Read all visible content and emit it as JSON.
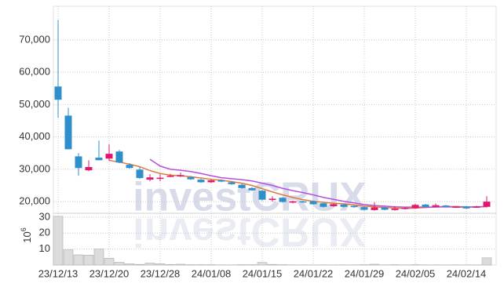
{
  "chart_data": [
    {
      "type": "candlestick",
      "watermark": "investCRUX",
      "up_color": "#e3166e",
      "down_color": "#2e8fcb",
      "open": [
        55600,
        46600,
        34000,
        29700,
        33600,
        33300,
        35500,
        31400,
        29900,
        26800,
        27300,
        27800,
        27800,
        27600,
        26800,
        26000,
        26600,
        26000,
        25200,
        24200,
        23400,
        20700,
        21200,
        19700,
        20100,
        20100,
        19500,
        18600,
        19100,
        18700,
        18300,
        17400,
        18200,
        17400,
        17800,
        18000,
        19100,
        18400,
        18800,
        18300,
        18500,
        18300,
        18400
      ],
      "high": [
        76200,
        49000,
        35000,
        32800,
        38900,
        37700,
        36000,
        31900,
        30700,
        28500,
        28500,
        28600,
        29000,
        27900,
        27100,
        26900,
        26900,
        26300,
        25500,
        24500,
        23600,
        21700,
        21400,
        20300,
        20300,
        20300,
        19700,
        19400,
        19300,
        18900,
        18500,
        19800,
        18400,
        18600,
        18300,
        19400,
        19300,
        19400,
        19000,
        18600,
        18700,
        18700,
        21700
      ],
      "low": [
        45900,
        36200,
        28000,
        29400,
        32800,
        32600,
        31900,
        30200,
        27000,
        26300,
        26300,
        27600,
        27600,
        26700,
        25800,
        25800,
        26000,
        25200,
        24000,
        23300,
        20300,
        20000,
        19700,
        19500,
        19700,
        19000,
        18200,
        18400,
        18200,
        18100,
        17300,
        17200,
        17300,
        17200,
        17600,
        17800,
        18200,
        18300,
        18200,
        18100,
        17700,
        18100,
        18200
      ],
      "close": [
        51500,
        36200,
        30400,
        30700,
        32800,
        34800,
        32100,
        30400,
        27300,
        27500,
        27400,
        28000,
        28200,
        26900,
        26000,
        26600,
        26200,
        25400,
        24200,
        23500,
        20600,
        20900,
        19900,
        20100,
        19900,
        19200,
        18400,
        19200,
        18400,
        18300,
        17500,
        18200,
        17500,
        17800,
        18100,
        19000,
        18400,
        18900,
        18400,
        18500,
        17900,
        18500,
        20000
      ],
      "moving_averages": [
        {
          "color": "#e07a3c",
          "values": [
            null,
            null,
            null,
            null,
            null,
            32800,
            32200,
            31600,
            30800,
            29600,
            28700,
            28200,
            28000,
            27700,
            27300,
            26900,
            26600,
            26200,
            25700,
            25000,
            24000,
            23000,
            22100,
            21300,
            20600,
            20100,
            19800,
            19500,
            19300,
            19000,
            18600,
            18400,
            18200,
            18000,
            17900,
            18000,
            18200,
            18400,
            18500,
            18500,
            18400,
            18300,
            18500
          ]
        },
        {
          "color": "#b84ee0",
          "values": [
            null,
            null,
            null,
            null,
            null,
            null,
            null,
            null,
            null,
            33100,
            31000,
            30000,
            29700,
            29300,
            28700,
            28000,
            27400,
            27100,
            26800,
            26400,
            25700,
            25000,
            24100,
            23400,
            22800,
            22100,
            21300,
            20700,
            20100,
            19600,
            19100,
            18800,
            18600,
            18400,
            18300,
            18300,
            18300,
            18300,
            18400,
            18300,
            18300,
            18400,
            18500
          ]
        }
      ],
      "ylim": [
        16400,
        80400
      ],
      "yticks": [
        {
          "value": 20000,
          "label": "20,000"
        },
        {
          "value": 30000,
          "label": "30,000"
        },
        {
          "value": 40000,
          "label": "40,000"
        },
        {
          "value": 50000,
          "label": "50,000"
        },
        {
          "value": 60000,
          "label": "60,000"
        },
        {
          "value": 70000,
          "label": "70,000"
        }
      ],
      "grid": true
    },
    {
      "type": "bar",
      "categories": [
        "23/12/13",
        null,
        null,
        null,
        null,
        "23/12/20",
        null,
        null,
        null,
        null,
        "23/12/28",
        null,
        null,
        null,
        null,
        "24/01/08",
        null,
        null,
        null,
        null,
        "24/01/15",
        null,
        null,
        null,
        null,
        "24/01/22",
        null,
        null,
        null,
        null,
        "24/01/29",
        null,
        null,
        null,
        null,
        "24/02/05",
        null,
        null,
        null,
        null,
        "24/02/14",
        null,
        null
      ],
      "values": [
        30.5,
        9.5,
        6.4,
        6.2,
        10,
        4.3,
        1.7,
        0.8,
        0.4,
        1.2,
        0.8,
        0.3,
        0.5,
        0.2,
        0.2,
        0.2,
        0.1,
        0.1,
        0.2,
        0.2,
        1.6,
        0.4,
        0.2,
        0.1,
        0.1,
        0.1,
        0.1,
        0.1,
        0.1,
        0.1,
        0.2,
        0.5,
        0.1,
        0.2,
        0.1,
        0.2,
        0.1,
        0.1,
        0.1,
        0.1,
        0.1,
        0.1,
        4.5
      ],
      "color": "#dcdcdc",
      "y_unit": {
        "base": "10",
        "exponent": "6"
      },
      "ylim": [
        0,
        32.4
      ],
      "yticks": [
        10,
        20,
        30
      ],
      "grid": true
    }
  ]
}
